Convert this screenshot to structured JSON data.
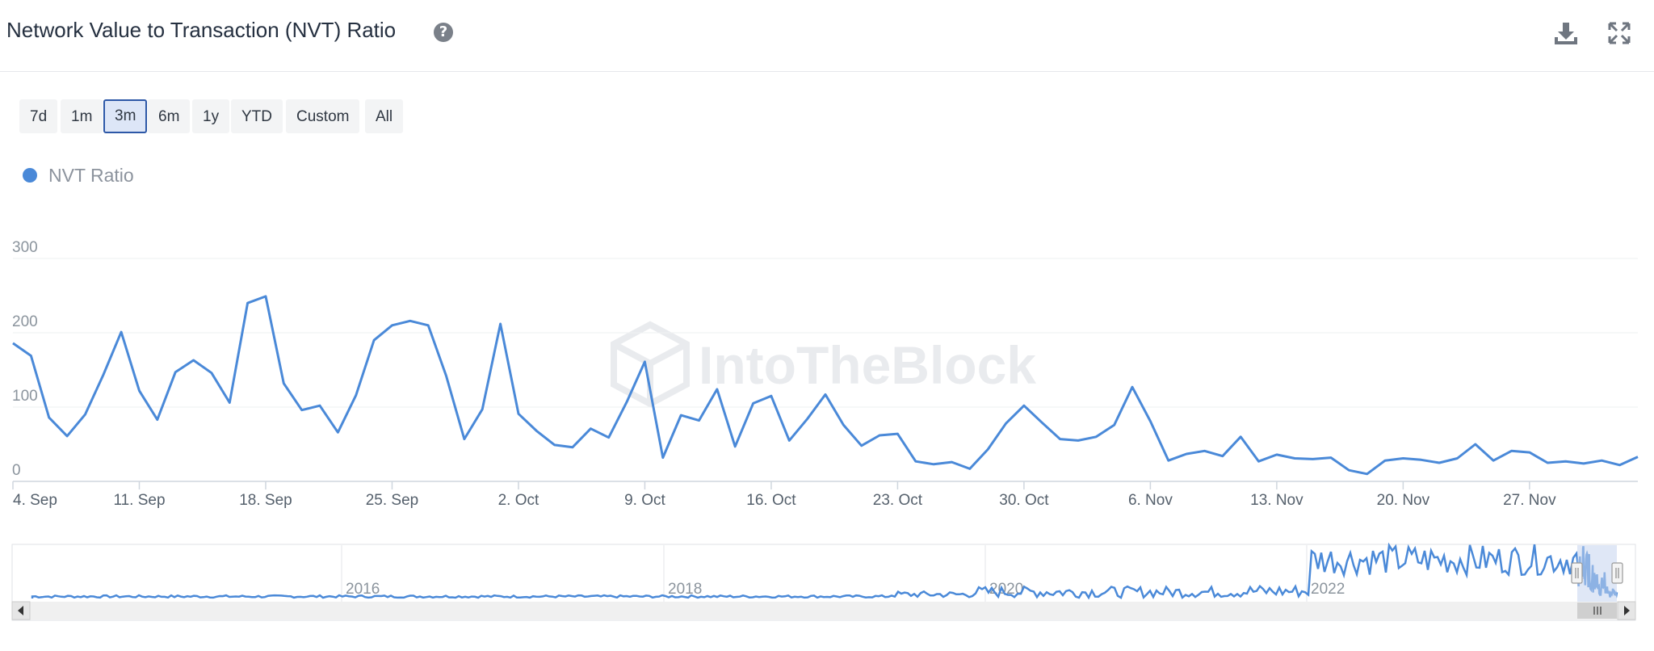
{
  "header": {
    "title": "Network Value to Transaction (NVT) Ratio",
    "help_icon": "?",
    "download_icon": "download-icon",
    "fullscreen_icon": "fullscreen-icon"
  },
  "ranges": [
    "7d",
    "1m",
    "3m",
    "6m",
    "1y",
    "YTD",
    "Custom",
    "All"
  ],
  "active_range": "3m",
  "legend": {
    "label": "NVT Ratio",
    "color": "#4a89d8"
  },
  "watermark": "IntoTheBlock",
  "navigator": {
    "labels": [
      "2016",
      "2018",
      "2020",
      "2022"
    ]
  },
  "colors": {
    "line": "#4a89d8",
    "accent": "#2d58a7"
  },
  "chart_data": {
    "type": "line",
    "title": "Network Value to Transaction (NVT) Ratio",
    "xlabel": "",
    "ylabel": "",
    "ylim": [
      0,
      300
    ],
    "yticks": [
      0,
      100,
      200,
      300
    ],
    "x_range": [
      "2022-09-04",
      "2022-12-03"
    ],
    "xtick_labels": [
      "4. Sep",
      "11. Sep",
      "18. Sep",
      "25. Sep",
      "2. Oct",
      "9. Oct",
      "16. Oct",
      "23. Oct",
      "30. Oct",
      "6. Nov",
      "13. Nov",
      "20. Nov",
      "27. Nov"
    ],
    "grid": true,
    "legend_position": "top-left",
    "series": [
      {
        "name": "NVT Ratio",
        "color": "#4a89d8",
        "x": [
          "2022-09-04",
          "2022-09-05",
          "2022-09-06",
          "2022-09-07",
          "2022-09-08",
          "2022-09-09",
          "2022-09-10",
          "2022-09-11",
          "2022-09-12",
          "2022-09-13",
          "2022-09-14",
          "2022-09-15",
          "2022-09-16",
          "2022-09-17",
          "2022-09-18",
          "2022-09-19",
          "2022-09-20",
          "2022-09-21",
          "2022-09-22",
          "2022-09-23",
          "2022-09-24",
          "2022-09-25",
          "2022-09-26",
          "2022-09-27",
          "2022-09-28",
          "2022-09-29",
          "2022-09-30",
          "2022-10-01",
          "2022-10-02",
          "2022-10-03",
          "2022-10-04",
          "2022-10-05",
          "2022-10-06",
          "2022-10-07",
          "2022-10-08",
          "2022-10-09",
          "2022-10-10",
          "2022-10-11",
          "2022-10-12",
          "2022-10-13",
          "2022-10-14",
          "2022-10-15",
          "2022-10-16",
          "2022-10-17",
          "2022-10-18",
          "2022-10-19",
          "2022-10-20",
          "2022-10-21",
          "2022-10-22",
          "2022-10-23",
          "2022-10-24",
          "2022-10-25",
          "2022-10-26",
          "2022-10-27",
          "2022-10-28",
          "2022-10-29",
          "2022-10-30",
          "2022-10-31",
          "2022-11-01",
          "2022-11-02",
          "2022-11-03",
          "2022-11-04",
          "2022-11-05",
          "2022-11-06",
          "2022-11-07",
          "2022-11-08",
          "2022-11-09",
          "2022-11-10",
          "2022-11-11",
          "2022-11-12",
          "2022-11-13",
          "2022-11-14",
          "2022-11-15",
          "2022-11-16",
          "2022-11-17",
          "2022-11-18",
          "2022-11-19",
          "2022-11-20",
          "2022-11-21",
          "2022-11-22",
          "2022-11-23",
          "2022-11-24",
          "2022-11-25",
          "2022-11-26",
          "2022-11-27",
          "2022-11-28",
          "2022-11-29",
          "2022-11-30",
          "2022-12-01",
          "2022-12-02",
          "2022-12-03"
        ],
        "y": [
          186,
          169,
          86,
          61,
          90,
          143,
          201,
          122,
          83,
          147,
          163,
          146,
          106,
          240,
          249,
          132,
          96,
          102,
          66,
          116,
          190,
          210,
          216,
          210,
          142,
          57,
          97,
          212,
          91,
          68,
          49,
          46,
          71,
          59,
          107,
          161,
          32,
          89,
          82,
          124,
          47,
          105,
          115,
          55,
          84,
          117,
          76,
          48,
          62,
          64,
          27,
          23,
          26,
          17,
          43,
          78,
          102,
          79,
          57,
          55,
          60,
          76,
          127,
          81,
          28,
          37,
          41,
          34,
          60,
          27,
          36,
          31,
          30,
          32,
          15,
          10,
          28,
          31,
          29,
          25,
          31,
          50,
          28,
          41,
          39,
          25,
          27,
          24,
          28,
          22,
          33
        ]
      }
    ]
  }
}
